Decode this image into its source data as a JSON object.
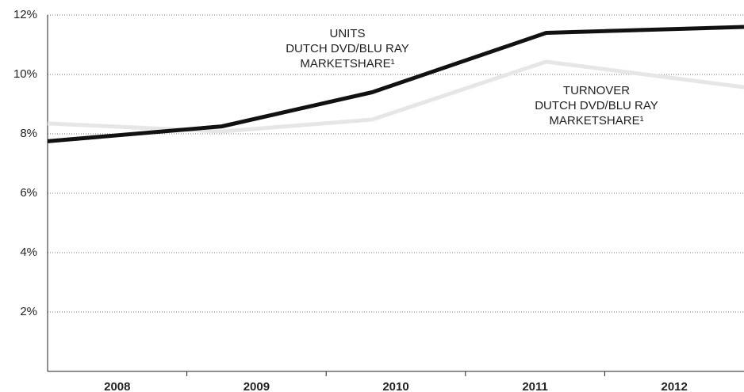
{
  "chart_data": {
    "type": "line",
    "x": [
      2007.5,
      2008.75,
      2009.83,
      2011.08,
      2012.5
    ],
    "series": [
      {
        "name": "TURNOVER",
        "color": "#e6e6e6",
        "values": [
          8.35,
          8.08,
          8.48,
          10.43,
          9.57
        ]
      },
      {
        "name": "UNITS",
        "color": "#111111",
        "values": [
          7.75,
          8.25,
          9.4,
          11.4,
          11.6
        ]
      }
    ],
    "annotations": [
      {
        "lines": [
          "UNITS",
          "DUTCH DVD/BLU RAY",
          "MARKETSHARE¹"
        ]
      },
      {
        "lines": [
          "TURNOVER",
          "DUTCH DVD/BLU RAY",
          "MARKETSHARE¹"
        ]
      }
    ],
    "xlim": [
      2007.5,
      2012.5
    ],
    "xticks": [
      2008,
      2009,
      2010,
      2011,
      2012
    ],
    "ylim": [
      0,
      12
    ],
    "yticks": [
      {
        "value": 2,
        "label": "2%"
      },
      {
        "value": 4,
        "label": "4%"
      },
      {
        "value": 6,
        "label": "6%"
      },
      {
        "value": 8,
        "label": "8%"
      },
      {
        "value": 10,
        "label": "10%"
      },
      {
        "value": 12,
        "label": "12%"
      }
    ],
    "grid": true
  }
}
